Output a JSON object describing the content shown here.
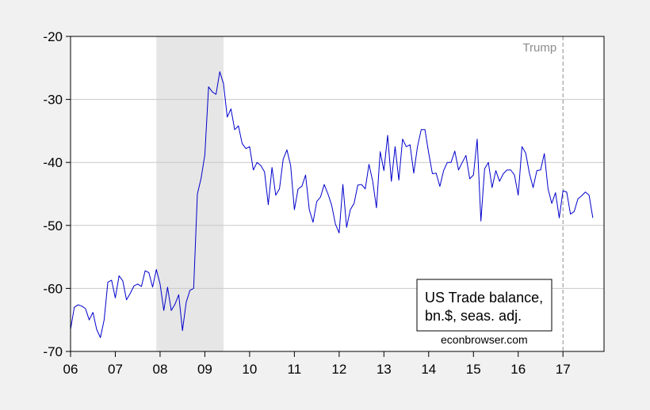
{
  "chart_data": {
    "type": "line",
    "title": "",
    "xlabel": "",
    "ylabel": "",
    "xlim": [
      2006.0,
      2017.917
    ],
    "ylim": [
      -70,
      -20
    ],
    "y_ticks": [
      -20,
      -30,
      -40,
      -50,
      -60,
      -70
    ],
    "y_tick_labels": [
      "-20",
      "-30",
      "-40",
      "-50",
      "-60",
      "-70"
    ],
    "x_tick_labels": [
      "06",
      "07",
      "08",
      "09",
      "10",
      "11",
      "12",
      "13",
      "14",
      "15",
      "16",
      "17"
    ],
    "grid": "horizontal",
    "recession_shading": {
      "start": 2007.917,
      "end": 2009.417
    },
    "vertical_marker": {
      "x": 2017.0,
      "label": "Trump",
      "style": "dashed"
    },
    "legend": {
      "lines": [
        "US Trade balance,",
        "bn.$, seas. adj."
      ],
      "placement": "bottom-right"
    },
    "credit": "econbrowser.com",
    "series": [
      {
        "name": "US Trade balance, bn.$, seas. adj.",
        "color": "#0000cc",
        "start_year": 2006.0,
        "frequency": "monthly",
        "values": [
          -66.5,
          -63.0,
          -62.6,
          -62.8,
          -63.2,
          -65.0,
          -63.8,
          -66.5,
          -67.8,
          -65.0,
          -59.0,
          -58.7,
          -61.5,
          -58.0,
          -58.8,
          -61.8,
          -60.8,
          -59.6,
          -59.3,
          -59.7,
          -57.2,
          -57.5,
          -59.8,
          -57.0,
          -59.3,
          -63.5,
          -59.8,
          -63.5,
          -62.5,
          -61.0,
          -66.7,
          -62.2,
          -60.3,
          -60.0,
          -45.0,
          -42.5,
          -38.8,
          -28.0,
          -28.8,
          -29.2,
          -25.6,
          -27.5,
          -32.8,
          -31.5,
          -34.8,
          -34.2,
          -37.0,
          -37.8,
          -37.5,
          -41.2,
          -40.0,
          -40.5,
          -41.5,
          -46.7,
          -40.8,
          -45.2,
          -44.2,
          -39.5,
          -38.0,
          -40.5,
          -47.5,
          -44.2,
          -43.8,
          -42.0,
          -47.5,
          -49.5,
          -46.2,
          -45.5,
          -43.5,
          -45.0,
          -46.8,
          -49.8,
          -51.2,
          -43.5,
          -50.3,
          -47.5,
          -46.5,
          -43.6,
          -43.5,
          -44.2,
          -40.3,
          -43.0,
          -47.2,
          -38.3,
          -41.3,
          -35.7,
          -43.0,
          -37.5,
          -42.8,
          -36.3,
          -37.5,
          -37.2,
          -41.7,
          -37.5,
          -34.8,
          -34.8,
          -38.5,
          -41.8,
          -41.7,
          -43.8,
          -41.3,
          -40.0,
          -40.0,
          -38.2,
          -41.2,
          -40.0,
          -38.9,
          -42.6,
          -42.0,
          -36.3,
          -49.3,
          -41.0,
          -40.0,
          -44.0,
          -41.3,
          -43.0,
          -41.8,
          -41.2,
          -41.2,
          -42.0,
          -45.2,
          -37.5,
          -38.5,
          -41.7,
          -44.0,
          -41.3,
          -41.2,
          -38.6,
          -44.2,
          -46.5,
          -44.8,
          -48.8,
          -44.5,
          -44.7,
          -48.2,
          -47.8,
          -45.8,
          -45.3,
          -44.7,
          -45.2,
          -48.8
        ]
      }
    ]
  }
}
